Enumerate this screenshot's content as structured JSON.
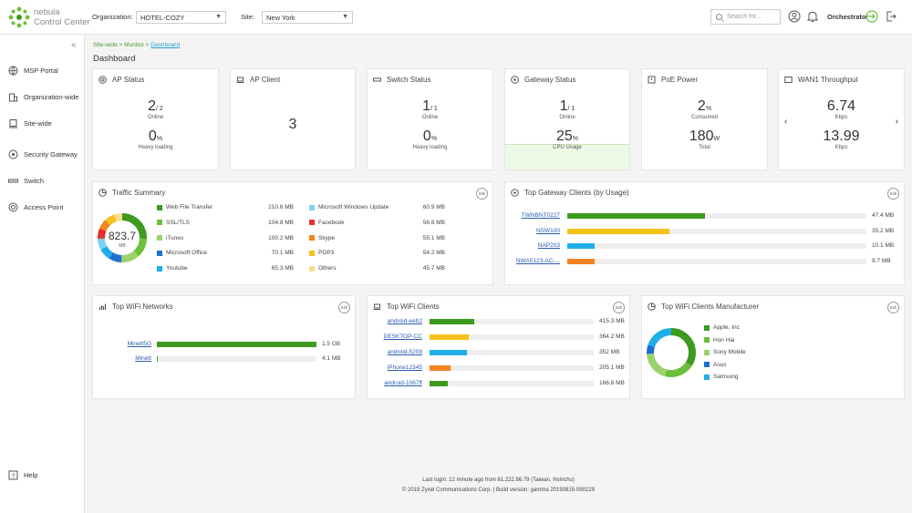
{
  "header": {
    "brand_line1": "nebula",
    "brand_line2": "Control Center",
    "org_label": "Organization:",
    "org_value": "HOTEL-COZY",
    "site_label": "Site:",
    "site_value": "New York",
    "search_placeholder": "Search for...",
    "orchestrator_label": "Orchestrator"
  },
  "sidebar": {
    "items": [
      {
        "label": "MSP Portal"
      },
      {
        "label": "Organization-wide"
      },
      {
        "label": "Site-wide"
      },
      {
        "label": "Security Gateway"
      },
      {
        "label": "Switch"
      },
      {
        "label": "Access Point"
      }
    ],
    "help_label": "Help"
  },
  "breadcrumb": {
    "part1": "Site-wide",
    "sep": " > ",
    "part2": "Monitor",
    "current": "Dashboard"
  },
  "page_title": "Dashboard",
  "cards": {
    "ap_status": {
      "title": "AP Status",
      "online_value": "2",
      "online_total": "/ 2",
      "online_label": "Online",
      "heavy_value": "0",
      "heavy_unit": "%",
      "heavy_label": "Heavy loading"
    },
    "ap_client": {
      "title": "AP Client",
      "value": "3"
    },
    "switch_status": {
      "title": "Switch Status",
      "online_value": "1",
      "online_total": "/ 1",
      "online_label": "Online",
      "heavy_value": "0",
      "heavy_unit": "%",
      "heavy_label": "Heavy loading"
    },
    "gateway_status": {
      "title": "Gateway Status",
      "online_value": "1",
      "online_total": "/ 1",
      "online_label": "Online",
      "cpu_value": "25",
      "cpu_unit": "%",
      "cpu_label": "CPU Usage",
      "cpu_fraction": 0.25
    },
    "poe_power": {
      "title": "PoE Power",
      "consumed_value": "2",
      "consumed_unit": "%",
      "consumed_label": "Consumed",
      "total_value": "180",
      "total_unit": "W",
      "total_label": "Total"
    },
    "wan1": {
      "title": "WAN1 Throughput",
      "up_value": "6.74",
      "up_label": "Kbps",
      "down_value": "13.99",
      "down_label": "Kbps"
    }
  },
  "traffic_summary": {
    "title": "Traffic Summary",
    "badge": "24h",
    "total_value": "823.7",
    "total_unit": "MB",
    "items": [
      {
        "label": "Web File Transfer",
        "value": "210.6 MB",
        "color": "#3d9a1f",
        "mb": 210.6
      },
      {
        "label": "SSL/TLS",
        "value": "104.8 MB",
        "color": "#6cbf3a",
        "mb": 104.8
      },
      {
        "label": "iTunes",
        "value": "100.2 MB",
        "color": "#9bd16a",
        "mb": 100.2
      },
      {
        "label": "Microsoft Office",
        "value": "70.1 MB",
        "color": "#1e6fd0",
        "mb": 70.1
      },
      {
        "label": "Youtube",
        "value": "65.3 MB",
        "color": "#1faee8",
        "mb": 65.3
      },
      {
        "label": "Microsoft Windows Update",
        "value": "60.9 MB",
        "color": "#7fd3f0",
        "mb": 60.9
      },
      {
        "label": "Facebook",
        "value": "56.8 MB",
        "color": "#e53030",
        "mb": 56.8
      },
      {
        "label": "Skype",
        "value": "55.1 MB",
        "color": "#f58220",
        "mb": 55.1
      },
      {
        "label": "POP3",
        "value": "54.2 MB",
        "color": "#f6c21a",
        "mb": 54.2
      },
      {
        "label": "Others",
        "value": "45.7 MB",
        "color": "#f6e08a",
        "mb": 45.7
      }
    ]
  },
  "top_gateway_clients": {
    "title": "Top Gateway Clients (by Usage)",
    "badge": "24h",
    "rows": [
      {
        "name": "TWNBNT0227",
        "value": "47.4 MB",
        "fraction": 0.46,
        "color": "#3d9a1f"
      },
      {
        "name": "NSW100",
        "value": "35.2 MB",
        "fraction": 0.34,
        "color": "#f6c21a"
      },
      {
        "name": "NAP203",
        "value": "10.1 MB",
        "fraction": 0.09,
        "color": "#1faee8"
      },
      {
        "name": "NWA5123-AC-...",
        "value": "9.7 MB",
        "fraction": 0.09,
        "color": "#f58220"
      }
    ]
  },
  "top_wifi_networks": {
    "title": "Top WiFi Networks",
    "badge": "24h",
    "rows": [
      {
        "name": "Minett5G",
        "value": "1.5 GB",
        "fraction": 1.0,
        "color": "#3d9a1f"
      },
      {
        "name": "Minett",
        "value": "4.1 MB",
        "fraction": 0.003,
        "color": "#3d9a1f"
      }
    ]
  },
  "top_wifi_clients": {
    "title": "Top WiFi Clients",
    "badge": "24h",
    "rows": [
      {
        "name": "android-eeb2",
        "value": "415.3 MB",
        "fraction": 0.27,
        "color": "#3d9a1f"
      },
      {
        "name": "DESKTOP-CC",
        "value": "364.2 MB",
        "fraction": 0.24,
        "color": "#f6c21a"
      },
      {
        "name": "android-5209",
        "value": "352 MB",
        "fraction": 0.23,
        "color": "#1faee8"
      },
      {
        "name": "iPhone12345",
        "value": "205.1 MB",
        "fraction": 0.13,
        "color": "#f58220"
      },
      {
        "name": "android-1067ff",
        "value": "166.8 MB",
        "fraction": 0.11,
        "color": "#3d9a1f"
      }
    ]
  },
  "top_wifi_manufacturer": {
    "title": "Top WiFi Clients Manufacturer",
    "badge": "24h",
    "items": [
      {
        "label": "Apple, Inc",
        "color": "#3d9a1f",
        "share": 0.34
      },
      {
        "label": "Hon Hai",
        "color": "#6cbf3a",
        "share": 0.2
      },
      {
        "label": "Sony Mobile",
        "color": "#9bd16a",
        "share": 0.2
      },
      {
        "label": "Asus",
        "color": "#1e6fd0",
        "share": 0.06
      },
      {
        "label": "Samsung",
        "color": "#1faee8",
        "share": 0.2
      }
    ]
  },
  "footer": {
    "last_login": "Last login: 12 minute ago from 61.222.86.79 (Taiwan, Hsinchu)",
    "copyright": "© 2019 Zyxel Communications Corp. | Build version: gamma 20190815-090229"
  }
}
